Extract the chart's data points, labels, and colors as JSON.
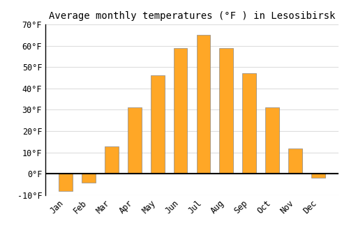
{
  "title": "Average monthly temperatures (°F ) in Lesosibirsk",
  "months": [
    "Jan",
    "Feb",
    "Mar",
    "Apr",
    "May",
    "Jun",
    "Jul",
    "Aug",
    "Sep",
    "Oct",
    "Nov",
    "Dec"
  ],
  "values": [
    -8,
    -4,
    13,
    31,
    46,
    59,
    65,
    59,
    47,
    31,
    12,
    -2
  ],
  "bar_color": "#FFA726",
  "bar_edge_color": "#888888",
  "ylim": [
    -10,
    70
  ],
  "yticks": [
    -10,
    0,
    10,
    20,
    30,
    40,
    50,
    60,
    70
  ],
  "ytick_labels": [
    "-10°F",
    "0°F",
    "10°F",
    "20°F",
    "30°F",
    "40°F",
    "50°F",
    "60°F",
    "70°F"
  ],
  "background_color": "#ffffff",
  "grid_color": "#dddddd",
  "title_fontsize": 10,
  "tick_fontsize": 8.5
}
